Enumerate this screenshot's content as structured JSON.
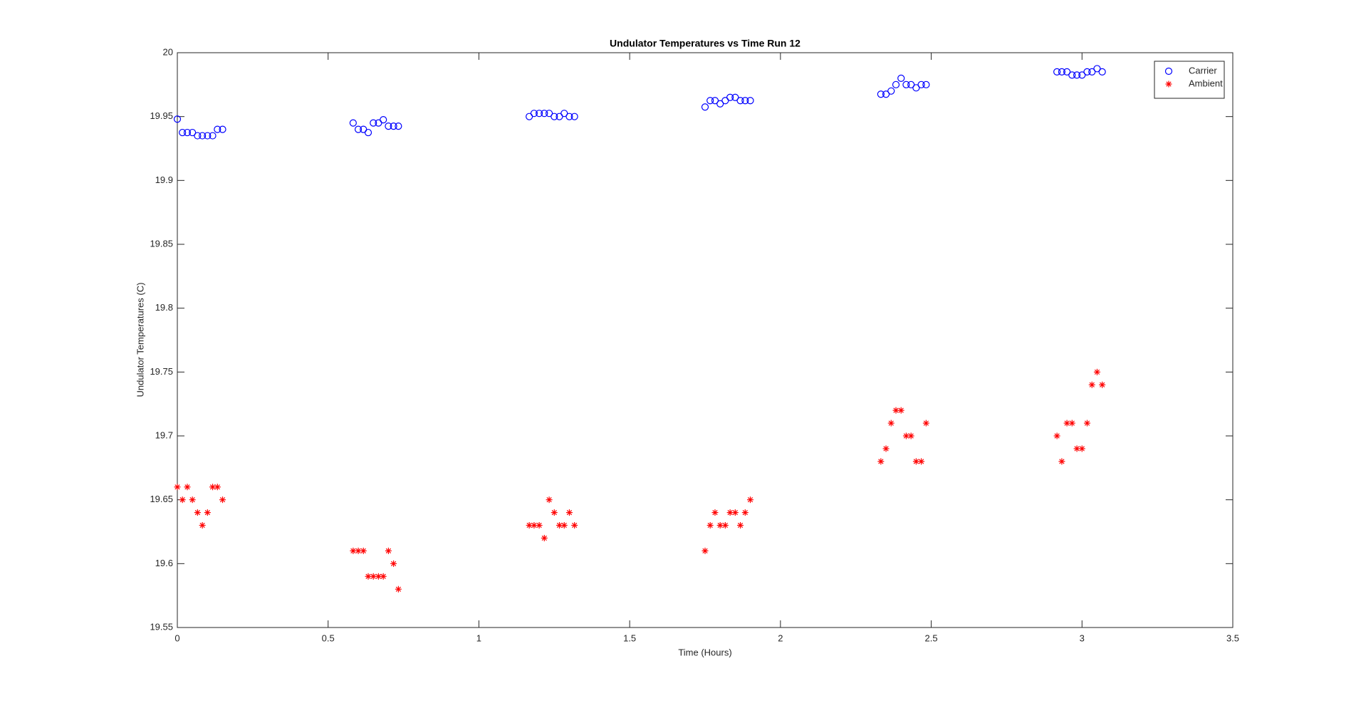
{
  "chart_data": {
    "type": "scatter",
    "title": "Undulator Temperatures vs Time Run 12",
    "x_label": "Time (Hours)",
    "y_label": "Undulator Temperatures (C)",
    "x": [
      0,
      0.017,
      0.033,
      0.05,
      0.067,
      0.083,
      0.1,
      0.117,
      0.133,
      0.15,
      0.583,
      0.6,
      0.617,
      0.633,
      0.65,
      0.667,
      0.683,
      0.7,
      0.717,
      0.733,
      1.167,
      1.183,
      1.2,
      1.217,
      1.233,
      1.25,
      1.267,
      1.283,
      1.3,
      1.317,
      1.75,
      1.767,
      1.783,
      1.8,
      1.817,
      1.833,
      1.85,
      1.867,
      1.883,
      1.9,
      2.333,
      2.35,
      2.367,
      2.383,
      2.4,
      2.417,
      2.433,
      2.45,
      2.467,
      2.483,
      2.917,
      2.933,
      2.95,
      2.967,
      2.983,
      3,
      3.017,
      3.033,
      3.05,
      3.067
    ],
    "series": [
      {
        "name": "Carrier",
        "color": "#0000ff",
        "marker": "circle",
        "values": [
          19.948,
          19.9375,
          19.9375,
          19.9375,
          19.935,
          19.935,
          19.935,
          19.935,
          19.94,
          19.94,
          19.945,
          19.94,
          19.94,
          19.9375,
          19.945,
          19.945,
          19.9475,
          19.9425,
          19.9425,
          19.9425,
          19.95,
          19.9525,
          19.9525,
          19.9525,
          19.9525,
          19.95,
          19.95,
          19.9525,
          19.95,
          19.95,
          19.9575,
          19.9625,
          19.9625,
          19.96,
          19.9625,
          19.965,
          19.965,
          19.9625,
          19.9625,
          19.9625,
          19.9675,
          19.9675,
          19.97,
          19.975,
          19.98,
          19.975,
          19.975,
          19.9725,
          19.975,
          19.975,
          19.985,
          19.985,
          19.985,
          19.9825,
          19.9825,
          19.9825,
          19.985,
          19.985,
          19.9875,
          19.985
        ]
      },
      {
        "name": "Ambient",
        "color": "#ff0000",
        "marker": "asterisk",
        "values": [
          19.66,
          19.65,
          19.66,
          19.65,
          19.64,
          19.63,
          19.64,
          19.66,
          19.66,
          19.65,
          19.61,
          19.61,
          19.61,
          19.59,
          19.59,
          19.59,
          19.59,
          19.61,
          19.6,
          19.58,
          19.63,
          19.63,
          19.63,
          19.62,
          19.65,
          19.64,
          19.63,
          19.63,
          19.64,
          19.63,
          19.61,
          19.63,
          19.64,
          19.63,
          19.63,
          19.64,
          19.64,
          19.63,
          19.64,
          19.65,
          19.68,
          19.69,
          19.71,
          19.72,
          19.72,
          19.7,
          19.7,
          19.68,
          19.68,
          19.71,
          19.7,
          19.68,
          19.71,
          19.71,
          19.69,
          19.69,
          19.71,
          19.74,
          19.75,
          19.74
        ]
      }
    ],
    "xlim": [
      0,
      3.5
    ],
    "xticks": [
      0,
      0.5,
      1,
      1.5,
      2,
      2.5,
      3,
      3.5
    ],
    "ylim": [
      19.55,
      20
    ],
    "yticks": [
      19.55,
      19.6,
      19.65,
      19.7,
      19.75,
      19.8,
      19.85,
      19.9,
      19.95,
      20
    ],
    "grid": false,
    "legend": "northeast"
  }
}
